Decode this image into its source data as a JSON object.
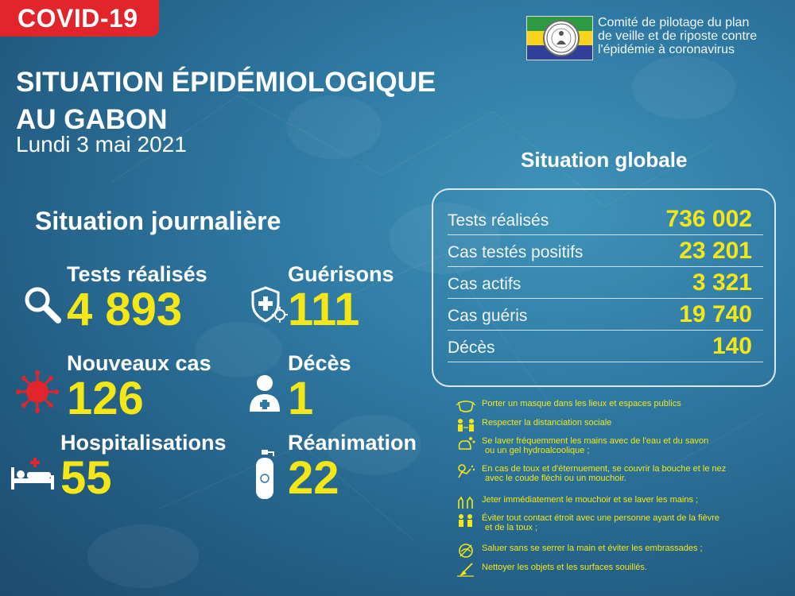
{
  "header": {
    "tag": "COVID-19",
    "title_line1": "SITUATION ÉPIDÉMIOLOGIQUE",
    "title_line2": "AU GABON",
    "date": "Lundi 3 mai 2021"
  },
  "logo": {
    "line1": "Comité de pilotage du plan",
    "line2": "de veille et de riposte contre",
    "line3": "l'épidémie à coronavirus",
    "seal_top": "RÉPUBLIQUE GABONAISE",
    "seal_bottom": "UNION • TRAVAIL • JUSTICE"
  },
  "daily": {
    "heading": "Situation journalière",
    "tests": {
      "label": "Tests réalisés",
      "value": "4 893",
      "icon": "magnifier-icon"
    },
    "recoveries": {
      "label": "Guérisons",
      "value": "111",
      "icon": "shield-virus-icon"
    },
    "new_cases": {
      "label": "Nouveaux cas",
      "value": "126",
      "icon": "virus-icon"
    },
    "deaths": {
      "label": "Décès",
      "value": "1",
      "icon": "doctor-icon"
    },
    "hospital": {
      "label": "Hospitalisations",
      "value": "55",
      "icon": "hospital-bed-icon"
    },
    "icu": {
      "label": "Réanimation",
      "value": "22",
      "icon": "oxygen-tank-icon"
    }
  },
  "global": {
    "heading": "Situation globale",
    "rows": [
      {
        "label": "Tests réalisés",
        "value": "736 002"
      },
      {
        "label": "Cas testés positifs",
        "value": "23 201"
      },
      {
        "label": "Cas actifs",
        "value": "3 321"
      },
      {
        "label": "Cas guéris",
        "value": "19 740"
      },
      {
        "label": "Décès",
        "value": "140"
      }
    ]
  },
  "tips": [
    {
      "line1": "Porter un masque dans les lieux et espaces publics",
      "line2": "",
      "icon": "mask-icon"
    },
    {
      "line1": "Respecter la distanciation sociale",
      "line2": "",
      "icon": "distance-icon"
    },
    {
      "line1": "Se laver fréquemment les mains avec de l'eau et du savon",
      "line2": "ou un gel hydroalcoolique ;",
      "icon": "handwash-icon"
    },
    {
      "line1": "En cas de toux et d'éternuement, se couvrir la bouche et le nez",
      "line2": "avec le coude fléchi ou un mouchoir.",
      "icon": "cough-icon"
    },
    {
      "line1": "Jeter immédiatement le mouchoir et se laver les mains ;",
      "line2": "",
      "icon": "hands-icon"
    },
    {
      "line1": "Éviter tout contact étroit avec une personne ayant de la fièvre",
      "line2": "et de la toux ;",
      "icon": "contact-icon"
    },
    {
      "line1": "Saluer sans se serrer la main et éviter les embrassades ;",
      "line2": "",
      "icon": "no-handshake-icon"
    },
    {
      "line1": "Nettoyer les objets et les surfaces souillés.",
      "line2": "",
      "icon": "cleaning-icon"
    }
  ],
  "colors": {
    "accent": "#f5e716",
    "tag": "#e2242b",
    "background": "#2f7aa3"
  }
}
